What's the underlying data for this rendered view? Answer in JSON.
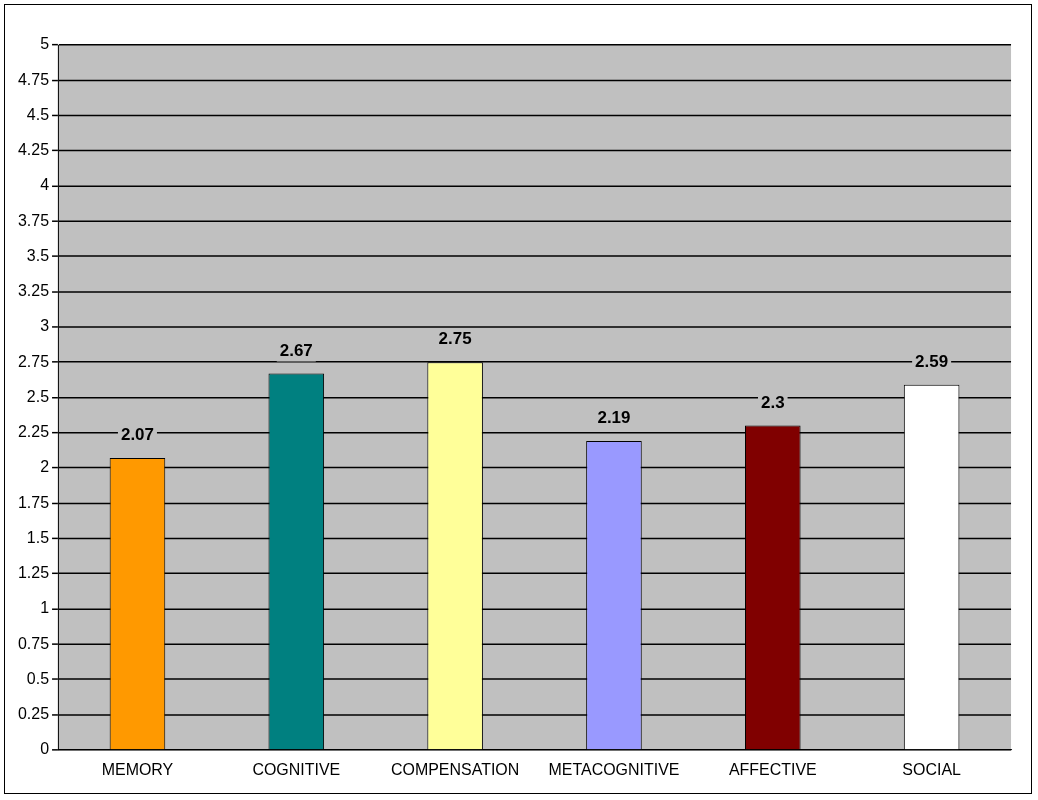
{
  "chart_data": {
    "type": "bar",
    "categories": [
      "MEMORY",
      "COGNITIVE",
      "COMPENSATION",
      "METACOGNITIVE",
      "AFFECTIVE",
      "SOCIAL"
    ],
    "values": [
      2.07,
      2.67,
      2.75,
      2.19,
      2.3,
      2.59
    ],
    "colors": [
      "#ff9900",
      "#008080",
      "#ffff99",
      "#9999ff",
      "#800000",
      "#ffffff"
    ],
    "ylim": [
      0,
      5
    ],
    "yticks": [
      0,
      0.25,
      0.5,
      0.75,
      1,
      1.25,
      1.5,
      1.75,
      2,
      2.25,
      2.5,
      2.75,
      3,
      3.25,
      3.5,
      3.75,
      4,
      4.25,
      4.5,
      4.75,
      5
    ],
    "grid": "y",
    "data_labels": true,
    "legend": false
  }
}
